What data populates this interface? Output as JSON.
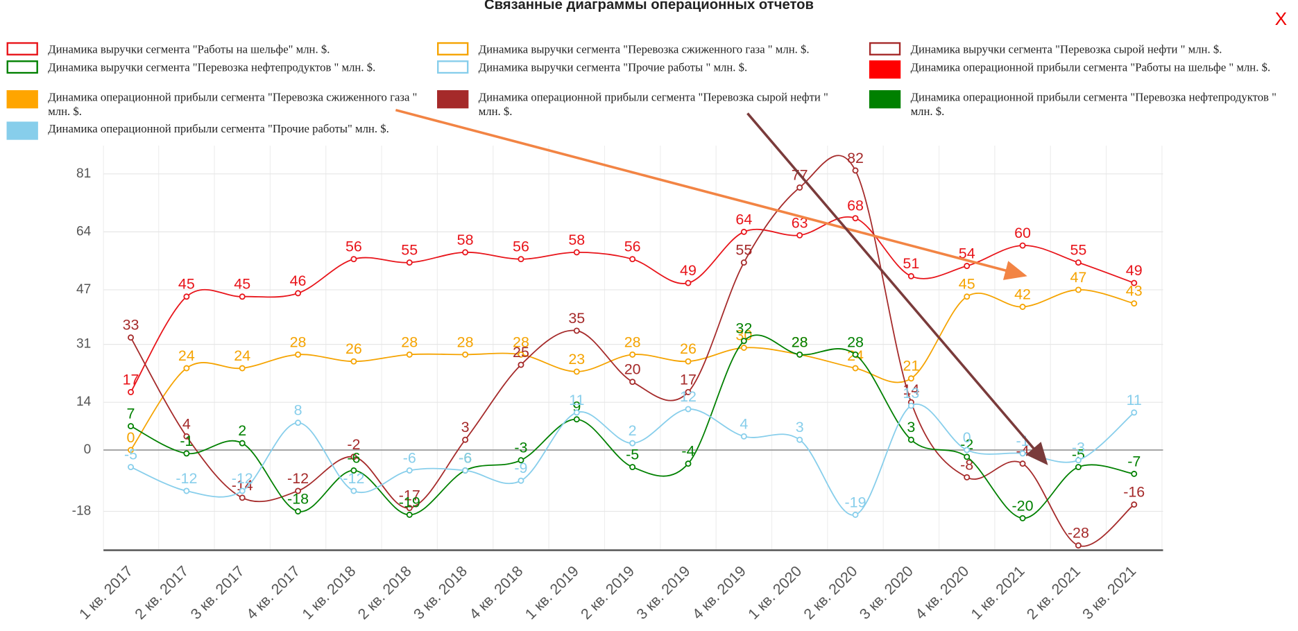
{
  "title": "Связанные диаграммы операционных отчетов",
  "close": "X",
  "chart_data": {
    "type": "line",
    "legend": [
      {
        "name": "Динамика выручки сегмента \"Работы на шельфе\" млн. $.",
        "color": "#e8141a",
        "style": "outline"
      },
      {
        "name": "Динамика выручки сегмента \"Перевозка сжиженного газа \" млн. $.",
        "color": "#f5a300",
        "style": "outline"
      },
      {
        "name": "Динамика выручки сегмента \"Перевозка сырой нефти \" млн. $.",
        "color": "#a52a2a",
        "style": "outline"
      },
      {
        "name": "Динамика выручки сегмента \"Перевозка нефтепродуктов \" млн. $.",
        "color": "#008000",
        "style": "outline"
      },
      {
        "name": "Динамика выручки сегмента \"Прочие работы \" млн. $.",
        "color": "#87ceeb",
        "style": "outline"
      },
      {
        "name": "Динамика операционной прибыли сегмента \"Работы на шельфе \" млн. $.",
        "color": "#ff0000",
        "style": "filled"
      },
      {
        "name": "Динамика операционной прибыли сегмента \"Перевозка сжиженного газа \" млн. $.",
        "color": "#ffa500",
        "style": "filled"
      },
      {
        "name": "Динамика операционной прибыли сегмента \"Перевозка сырой нефти \" млн. $.",
        "color": "#a52a2a",
        "style": "filled"
      },
      {
        "name": "Динамика операционной прибыли сегмента \"Перевозка нефтепродуктов \" млн. $.",
        "color": "#008000",
        "style": "filled"
      },
      {
        "name": "Динамика операционной прибыли сегмента \"Прочие работы\" млн. $.",
        "color": "#87ceeb",
        "style": "filled"
      }
    ],
    "categories": [
      "1 кв. 2017",
      "2 кв. 2017",
      "3 кв. 2017",
      "4 кв. 2017",
      "1 кв. 2018",
      "2 кв. 2018",
      "3 кв. 2018",
      "4 кв. 2018",
      "1 кв. 2019",
      "2 кв. 2019",
      "3 кв. 2019",
      "4 кв. 2019",
      "1 кв. 2020",
      "2 кв. 2020",
      "3 кв. 2020",
      "4 кв. 2020",
      "1 кв. 2021",
      "2 кв. 2021",
      "3 кв. 2021"
    ],
    "series": [
      {
        "color": "#e8141a",
        "values": [
          17,
          45,
          45,
          46,
          56,
          55,
          58,
          56,
          58,
          56,
          49,
          64,
          63,
          68,
          51,
          54,
          60,
          55,
          49
        ]
      },
      {
        "color": "#f5a300",
        "values": [
          0,
          24,
          24,
          28,
          26,
          28,
          28,
          28,
          23,
          28,
          26,
          30,
          28,
          24,
          21,
          45,
          42,
          47,
          43
        ]
      },
      {
        "color": "#a52a2a",
        "values": [
          33,
          4,
          -14,
          -12,
          -2,
          -17,
          3,
          25,
          35,
          20,
          17,
          55,
          77,
          82,
          14,
          -8,
          -4,
          -28,
          -16
        ]
      },
      {
        "color": "#008000",
        "values": [
          7,
          -1,
          2,
          -18,
          -6,
          -19,
          -6,
          -3,
          9,
          -5,
          -4,
          32,
          28,
          28,
          3,
          -2,
          -20,
          -5,
          -7
        ]
      },
      {
        "color": "#87ceeb",
        "values": [
          -5,
          -12,
          -12,
          8,
          -12,
          -6,
          -6,
          -9,
          11,
          2,
          12,
          4,
          3,
          -19,
          13,
          0,
          -1,
          -3,
          11
        ]
      }
    ],
    "ylim": [
      -29.4,
      89.3
    ],
    "yticks": [
      81,
      64,
      47,
      31,
      14,
      0,
      -18
    ],
    "grid": true
  }
}
